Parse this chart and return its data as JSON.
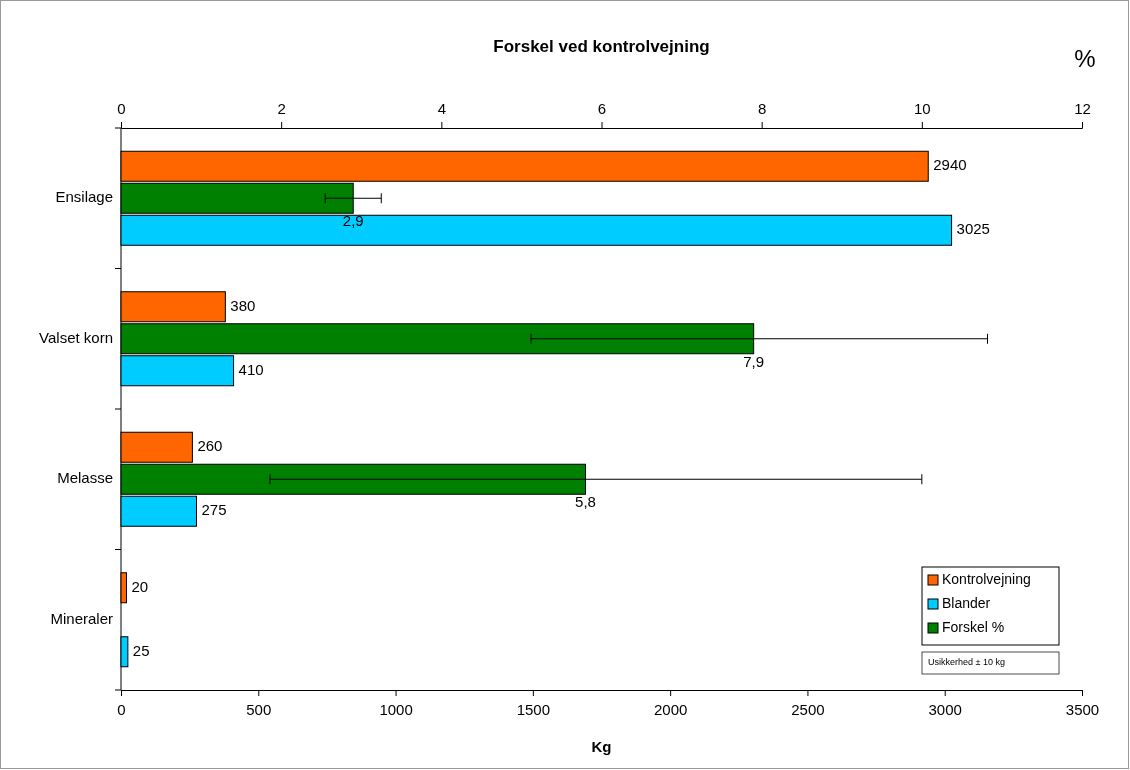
{
  "chart_data": {
    "type": "bar",
    "orientation": "horizontal",
    "title": "Forskel ved kontrolvejning",
    "xlabel": "Kg",
    "x2label": "%",
    "categories": [
      "Ensilage",
      "Valset korn",
      "Melasse",
      "Mineraler"
    ],
    "xlim": [
      0,
      3500
    ],
    "xticks": [
      0,
      500,
      1000,
      1500,
      2000,
      2500,
      3000,
      3500
    ],
    "x2lim": [
      0,
      12
    ],
    "x2ticks": [
      0,
      2,
      4,
      6,
      8,
      10,
      12
    ],
    "series": [
      {
        "name": "Kontrolvejning",
        "color": "#ff6600",
        "values": [
          2940,
          380,
          260,
          20
        ],
        "value_labels": [
          "2940",
          "380",
          "260",
          "20"
        ]
      },
      {
        "name": "Forskel %",
        "color": "#008000",
        "axis": "x2",
        "values": [
          2.9,
          7.9,
          5.8,
          null
        ],
        "value_labels": [
          "2,9",
          "7,9",
          "5,8",
          null
        ],
        "errors": [
          [
            2.55,
            3.25
          ],
          [
            5.12,
            10.82
          ],
          [
            1.86,
            10.0
          ],
          null
        ]
      },
      {
        "name": "Blander",
        "color": "#00ccff",
        "values": [
          3025,
          410,
          275,
          25
        ],
        "value_labels": [
          "3025",
          "410",
          "275",
          "25"
        ]
      }
    ],
    "legend": "bottom right",
    "grid": false,
    "annotations": [
      "Usikkerhed ± 10 kg"
    ]
  }
}
